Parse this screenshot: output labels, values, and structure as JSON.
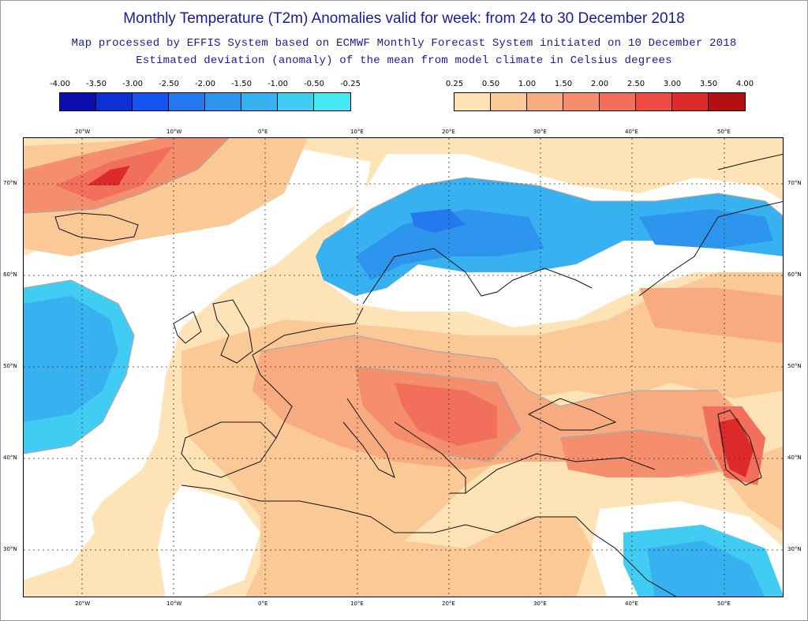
{
  "header": {
    "title": "Monthly Temperature (T2m) Anomalies valid for week: from 24 to 30 December 2018",
    "subtitle": "Map processed by EFFIS System based on ECMWF Monthly Forecast System initiated on 10 December 2018",
    "description": "Estimated deviation (anomaly) of the mean from model climate in Celsius degrees"
  },
  "legend": {
    "negative": {
      "labels": [
        "-4.00",
        "-3.50",
        "-3.00",
        "-2.50",
        "-2.00",
        "-1.50",
        "-1.00",
        "-0.50",
        "-0.25"
      ],
      "colors": [
        "#0a0fae",
        "#0d2fd6",
        "#1554f0",
        "#2479ef",
        "#2e95ee",
        "#38b1f0",
        "#41cdf3",
        "#45e8f5"
      ]
    },
    "positive": {
      "labels": [
        "0.25",
        "0.50",
        "1.00",
        "1.50",
        "2.00",
        "2.50",
        "3.00",
        "3.50",
        "4.00"
      ],
      "colors": [
        "#fde3b5",
        "#fbc996",
        "#f8ab80",
        "#f58e6c",
        "#f26f5b",
        "#ee4b43",
        "#dd2a2a",
        "#b40f12"
      ]
    }
  },
  "map": {
    "longitude_labels": [
      "20°W",
      "10°W",
      "0°E",
      "10°E",
      "20°E",
      "30°E",
      "40°E",
      "50°E"
    ],
    "latitude_labels": [
      "70°N",
      "60°N",
      "50°N",
      "40°N",
      "30°N"
    ],
    "colors": {
      "land_neutral": "#ffffff",
      "coast": "#111111",
      "contour": "#a9a9a9"
    }
  }
}
